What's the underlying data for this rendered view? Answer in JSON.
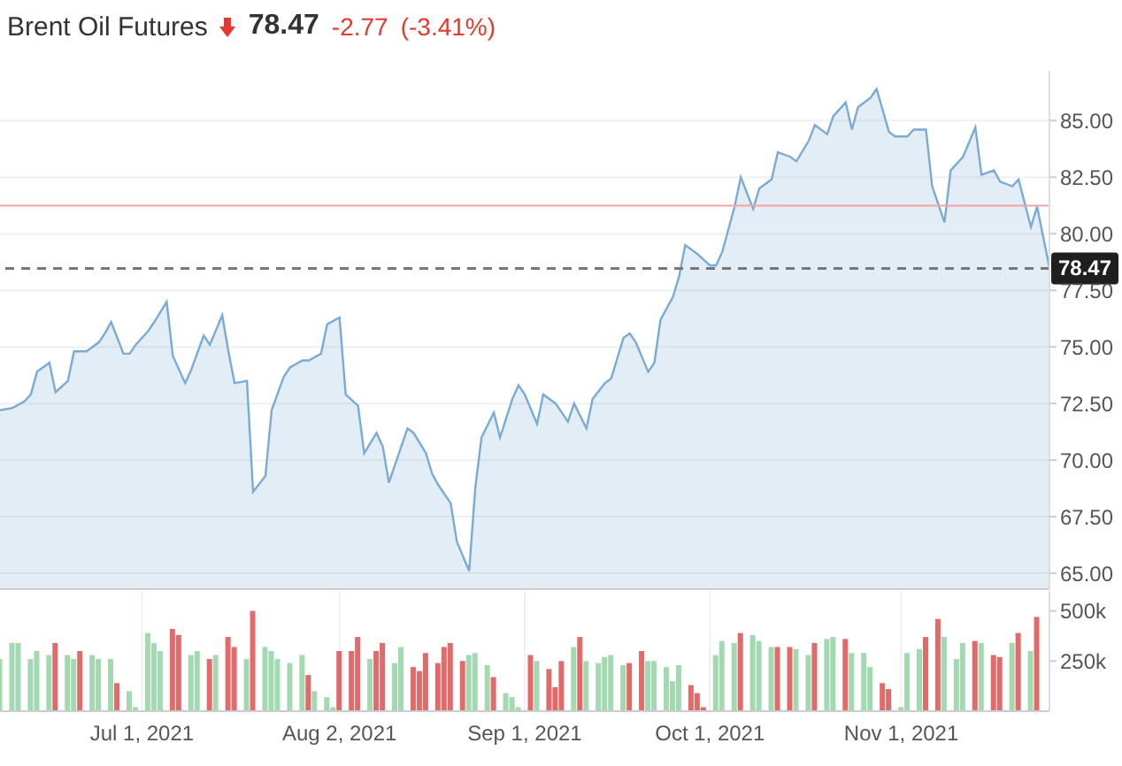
{
  "chart_data": [
    {
      "type": "area",
      "title": "Brent Oil Futures",
      "annotations": [
        "78.47",
        "-2.77",
        "(-3.41%)"
      ],
      "x": [
        "2021-06-08",
        "2021-06-10",
        "2021-06-12",
        "2021-06-13",
        "2021-06-14",
        "2021-06-16",
        "2021-06-17",
        "2021-06-19",
        "2021-06-20",
        "2021-06-22",
        "2021-06-24",
        "2021-06-25",
        "2021-06-26",
        "2021-06-28",
        "2021-06-29",
        "2021-06-30",
        "2021-07-02",
        "2021-07-03",
        "2021-07-05",
        "2021-07-06",
        "2021-07-08",
        "2021-07-09",
        "2021-07-11",
        "2021-07-12",
        "2021-07-14",
        "2021-07-15",
        "2021-07-16",
        "2021-07-18",
        "2021-07-19",
        "2021-07-21",
        "2021-07-22",
        "2021-07-24",
        "2021-07-25",
        "2021-07-27",
        "2021-07-28",
        "2021-07-30",
        "2021-07-31",
        "2021-08-02",
        "2021-08-03",
        "2021-08-05",
        "2021-08-06",
        "2021-08-08",
        "2021-08-09",
        "2021-08-10",
        "2021-08-12",
        "2021-08-13",
        "2021-08-14",
        "2021-08-16",
        "2021-08-17",
        "2021-08-18",
        "2021-08-20",
        "2021-08-21",
        "2021-08-23",
        "2021-08-24",
        "2021-08-25",
        "2021-08-27",
        "2021-08-28",
        "2021-08-30",
        "2021-08-31",
        "2021-09-01",
        "2021-09-03",
        "2021-09-04",
        "2021-09-06",
        "2021-09-08",
        "2021-09-09",
        "2021-09-11",
        "2021-09-12",
        "2021-09-14",
        "2021-09-15",
        "2021-09-17",
        "2021-09-18",
        "2021-09-19",
        "2021-09-21",
        "2021-09-22",
        "2021-09-23",
        "2021-09-25",
        "2021-09-26",
        "2021-09-27",
        "2021-09-29",
        "2021-10-01",
        "2021-10-02",
        "2021-10-03",
        "2021-10-05",
        "2021-10-06",
        "2021-10-08",
        "2021-10-09",
        "2021-10-11",
        "2021-10-12",
        "2021-10-14",
        "2021-10-15",
        "2021-10-17",
        "2021-10-18",
        "2021-10-20",
        "2021-10-21",
        "2021-10-23",
        "2021-10-24",
        "2021-10-25",
        "2021-10-27",
        "2021-10-28",
        "2021-10-30",
        "2021-10-31",
        "2021-11-02",
        "2021-11-03",
        "2021-11-05",
        "2021-11-06",
        "2021-11-08",
        "2021-11-09",
        "2021-11-11",
        "2021-11-13",
        "2021-11-14",
        "2021-11-16",
        "2021-11-17",
        "2021-11-19",
        "2021-11-20",
        "2021-11-22",
        "2021-11-23",
        "2021-11-25"
      ],
      "series": [
        {
          "color": "#7aabd6",
          "values": [
            72.2,
            72.3,
            72.6,
            72.9,
            73.9,
            74.3,
            73.0,
            73.5,
            74.8,
            74.8,
            75.2,
            75.6,
            76.1,
            74.7,
            74.7,
            75.1,
            75.7,
            76.1,
            77.0,
            74.6,
            73.4,
            74.0,
            75.5,
            75.1,
            76.4,
            74.8,
            73.4,
            73.5,
            68.6,
            69.3,
            72.2,
            73.7,
            74.1,
            74.4,
            74.4,
            74.7,
            76.0,
            76.3,
            72.9,
            72.4,
            70.3,
            71.2,
            70.6,
            69.0,
            70.6,
            71.4,
            71.2,
            70.3,
            69.4,
            68.9,
            68.1,
            66.4,
            65.1,
            68.8,
            71.0,
            72.1,
            71.0,
            72.7,
            73.3,
            72.9,
            71.6,
            72.9,
            72.5,
            71.7,
            72.5,
            71.4,
            72.7,
            73.4,
            73.6,
            75.4,
            75.6,
            75.2,
            73.9,
            74.3,
            76.2,
            77.2,
            78.1,
            79.5,
            79.1,
            78.6,
            78.6,
            79.2,
            81.2,
            82.5,
            81.1,
            82.0,
            82.4,
            83.6,
            83.4,
            83.2,
            84.1,
            84.8,
            84.4,
            85.2,
            85.8,
            84.6,
            85.6,
            86.0,
            86.4,
            84.5,
            84.3,
            84.3,
            84.6,
            84.6,
            82.1,
            80.5,
            82.8,
            83.4,
            84.7,
            82.6,
            82.8,
            82.3,
            82.1,
            82.4,
            80.3,
            81.2,
            78.5
          ]
        }
      ],
      "xlim": [
        "2021-06-08",
        "2021-11-25"
      ],
      "xticks": [
        {
          "value": "2021-07-01",
          "label": null
        },
        {
          "value": "2021-08-02",
          "label": null
        },
        {
          "value": "2021-09-01",
          "label": null
        },
        {
          "value": "2021-10-01",
          "label": null
        },
        {
          "value": "2021-11-01",
          "label": null
        }
      ],
      "ylim": [
        64.3,
        87.2
      ],
      "yticks": [
        {
          "value": 65,
          "label": "65.00"
        },
        {
          "value": 67.5,
          "label": "67.50"
        },
        {
          "value": 70,
          "label": "70.00"
        },
        {
          "value": 72.5,
          "label": "72.50"
        },
        {
          "value": 75,
          "label": "75.00"
        },
        {
          "value": 77.5,
          "label": "77.50"
        },
        {
          "value": 80,
          "label": "80.00"
        },
        {
          "value": 82.5,
          "label": "82.50"
        },
        {
          "value": 85,
          "label": "85.00"
        }
      ],
      "ref_lines": [
        {
          "axis": "y",
          "value": 81.24,
          "color": "#f5a3a3",
          "line_style": "solid"
        },
        {
          "axis": "y",
          "value": 78.47,
          "label": "78.47",
          "color": "#777777",
          "line_style": "dashed"
        }
      ],
      "grid": true,
      "tick_labels": "y"
    },
    {
      "type": "bar",
      "x": [
        "2021-06-08",
        "2021-06-10",
        "2021-06-11",
        "2021-06-13",
        "2021-06-14",
        "2021-06-16",
        "2021-06-17",
        "2021-06-19",
        "2021-06-20",
        "2021-06-21",
        "2021-06-23",
        "2021-06-24",
        "2021-06-26",
        "2021-06-27",
        "2021-06-29",
        "2021-06-30",
        "2021-07-02",
        "2021-07-03",
        "2021-07-04",
        "2021-07-06",
        "2021-07-07",
        "2021-07-09",
        "2021-07-10",
        "2021-07-12",
        "2021-07-13",
        "2021-07-15",
        "2021-07-16",
        "2021-07-18",
        "2021-07-19",
        "2021-07-21",
        "2021-07-22",
        "2021-07-23",
        "2021-07-25",
        "2021-07-27",
        "2021-07-28",
        "2021-07-29",
        "2021-07-31",
        "2021-08-01",
        "2021-08-02",
        "2021-08-04",
        "2021-08-05",
        "2021-08-07",
        "2021-08-08",
        "2021-08-09",
        "2021-08-11",
        "2021-08-12",
        "2021-08-14",
        "2021-08-15",
        "2021-08-16",
        "2021-08-18",
        "2021-08-19",
        "2021-08-20",
        "2021-08-22",
        "2021-08-23",
        "2021-08-24",
        "2021-08-26",
        "2021-08-27",
        "2021-08-29",
        "2021-08-30",
        "2021-08-31",
        "2021-09-02",
        "2021-09-03",
        "2021-09-05",
        "2021-09-06",
        "2021-09-07",
        "2021-09-09",
        "2021-09-10",
        "2021-09-11",
        "2021-09-13",
        "2021-09-14",
        "2021-09-15",
        "2021-09-17",
        "2021-09-18",
        "2021-09-20",
        "2021-09-21",
        "2021-09-22",
        "2021-09-24",
        "2021-09-25",
        "2021-09-26",
        "2021-09-28",
        "2021-09-29",
        "2021-09-30",
        "2021-10-02",
        "2021-10-03",
        "2021-10-05",
        "2021-10-06",
        "2021-10-08",
        "2021-10-09",
        "2021-10-11",
        "2021-10-12",
        "2021-10-14",
        "2021-10-15",
        "2021-10-17",
        "2021-10-18",
        "2021-10-20",
        "2021-10-21",
        "2021-10-23",
        "2021-10-24",
        "2021-10-26",
        "2021-10-27",
        "2021-10-29",
        "2021-10-30",
        "2021-11-01",
        "2021-11-02",
        "2021-11-04",
        "2021-11-05",
        "2021-11-07",
        "2021-11-08",
        "2021-11-10",
        "2021-11-11",
        "2021-11-13",
        "2021-11-14",
        "2021-11-16",
        "2021-11-17",
        "2021-11-19",
        "2021-11-20",
        "2021-11-22",
        "2021-11-23"
      ],
      "values": [
        260000,
        340000,
        340000,
        260000,
        300000,
        280000,
        340000,
        280000,
        260000,
        300000,
        280000,
        260000,
        260000,
        140000,
        100000,
        20000,
        390000,
        340000,
        300000,
        410000,
        380000,
        280000,
        300000,
        260000,
        280000,
        370000,
        320000,
        260000,
        500000,
        320000,
        300000,
        260000,
        240000,
        280000,
        180000,
        100000,
        70000,
        20000,
        300000,
        300000,
        370000,
        260000,
        300000,
        340000,
        240000,
        320000,
        220000,
        200000,
        290000,
        240000,
        320000,
        340000,
        250000,
        280000,
        290000,
        230000,
        170000,
        90000,
        70000,
        20000,
        280000,
        250000,
        210000,
        120000,
        250000,
        320000,
        370000,
        250000,
        240000,
        270000,
        280000,
        230000,
        240000,
        300000,
        250000,
        250000,
        220000,
        150000,
        230000,
        130000,
        90000,
        20000,
        280000,
        350000,
        340000,
        390000,
        380000,
        350000,
        320000,
        320000,
        320000,
        310000,
        280000,
        340000,
        360000,
        370000,
        360000,
        290000,
        290000,
        220000,
        140000,
        110000,
        20000,
        290000,
        310000,
        370000,
        460000,
        370000,
        260000,
        340000,
        350000,
        340000,
        280000,
        270000,
        340000,
        390000,
        300000,
        470000
      ],
      "colors": [
        "#a3d9b1",
        "#a3d9b1",
        "#a3d9b1",
        "#a3d9b1",
        "#a3d9b1",
        "#a3d9b1",
        "#e26a6a",
        "#a3d9b1",
        "#a3d9b1",
        "#e26a6a",
        "#a3d9b1",
        "#a3d9b1",
        "#a3d9b1",
        "#e26a6a",
        "#a3d9b1",
        "#a3d9b1",
        "#a3d9b1",
        "#a3d9b1",
        "#a3d9b1",
        "#e26a6a",
        "#e26a6a",
        "#a3d9b1",
        "#a3d9b1",
        "#e26a6a",
        "#a3d9b1",
        "#e26a6a",
        "#e26a6a",
        "#a3d9b1",
        "#e26a6a",
        "#a3d9b1",
        "#a3d9b1",
        "#a3d9b1",
        "#a3d9b1",
        "#a3d9b1",
        "#e26a6a",
        "#a3d9b1",
        "#a3d9b1",
        "#a3d9b1",
        "#e26a6a",
        "#e26a6a",
        "#e26a6a",
        "#a3d9b1",
        "#e26a6a",
        "#e26a6a",
        "#a3d9b1",
        "#a3d9b1",
        "#e26a6a",
        "#e26a6a",
        "#e26a6a",
        "#e26a6a",
        "#e26a6a",
        "#e26a6a",
        "#e26a6a",
        "#a3d9b1",
        "#a3d9b1",
        "#a3d9b1",
        "#e26a6a",
        "#a3d9b1",
        "#a3d9b1",
        "#a3d9b1",
        "#e26a6a",
        "#a3d9b1",
        "#e26a6a",
        "#e26a6a",
        "#e26a6a",
        "#a3d9b1",
        "#e26a6a",
        "#a3d9b1",
        "#a3d9b1",
        "#a3d9b1",
        "#a3d9b1",
        "#a3d9b1",
        "#e26a6a",
        "#e26a6a",
        "#a3d9b1",
        "#a3d9b1",
        "#a3d9b1",
        "#a3d9b1",
        "#a3d9b1",
        "#e26a6a",
        "#e26a6a",
        "#e26a6a",
        "#a3d9b1",
        "#a3d9b1",
        "#a3d9b1",
        "#e26a6a",
        "#a3d9b1",
        "#a3d9b1",
        "#a3d9b1",
        "#e26a6a",
        "#e26a6a",
        "#a3d9b1",
        "#a3d9b1",
        "#e26a6a",
        "#a3d9b1",
        "#a3d9b1",
        "#e26a6a",
        "#a3d9b1",
        "#a3d9b1",
        "#a3d9b1",
        "#e26a6a",
        "#e26a6a",
        "#a3d9b1",
        "#a3d9b1",
        "#a3d9b1",
        "#e26a6a",
        "#e26a6a",
        "#a3d9b1",
        "#a3d9b1",
        "#a3d9b1",
        "#e26a6a",
        "#a3d9b1",
        "#e26a6a",
        "#e26a6a",
        "#a3d9b1",
        "#e26a6a",
        "#a3d9b1",
        "#e26a6a"
      ],
      "xlim": [
        "2021-06-08",
        "2021-11-25"
      ],
      "xticks": [
        {
          "value": "2021-07-01",
          "label": "Jul 1, 2021"
        },
        {
          "value": "2021-08-02",
          "label": "Aug 2, 2021"
        },
        {
          "value": "2021-09-01",
          "label": "Sep 1, 2021"
        },
        {
          "value": "2021-10-01",
          "label": "Oct 1, 2021"
        },
        {
          "value": "2021-11-01",
          "label": "Nov 1, 2021"
        }
      ],
      "ylim": [
        0,
        600000
      ],
      "yticks": [
        {
          "value": 250000,
          "label": "250k"
        },
        {
          "value": 500000,
          "label": "500k"
        }
      ],
      "grid": "x"
    }
  ]
}
